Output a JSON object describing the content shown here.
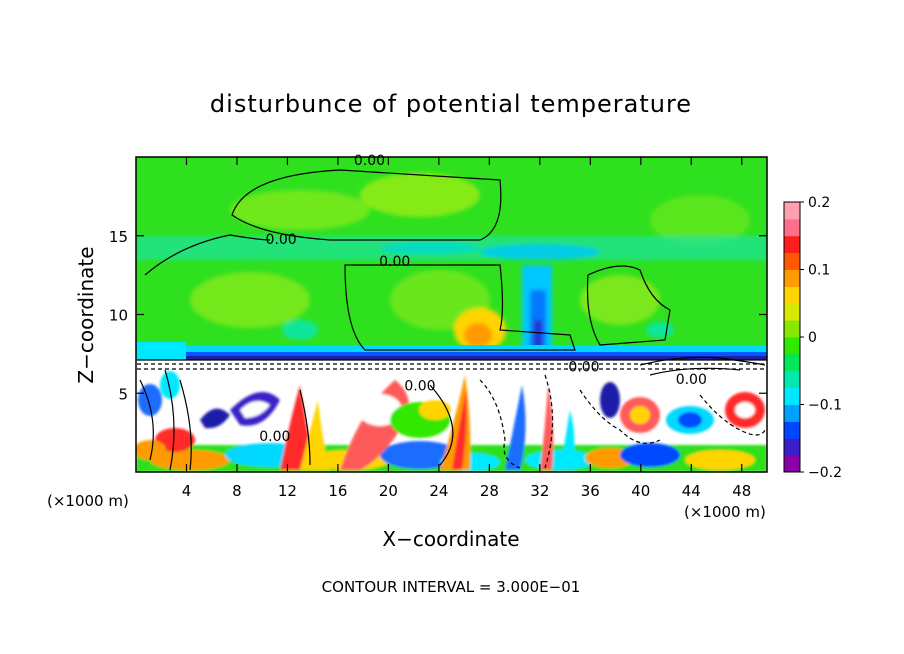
{
  "chart_data": {
    "type": "heatmap",
    "title": "disturbunce of potential temperature",
    "xlabel": "X−coordinate",
    "ylabel": "Z−coordinate",
    "x_unit": "(×1000 m)",
    "x_unit_right": "(×1000 m)",
    "xlim": [
      0,
      50
    ],
    "ylim": [
      0,
      20
    ],
    "x_ticks": [
      4,
      8,
      12,
      16,
      20,
      24,
      28,
      32,
      36,
      40,
      44,
      48
    ],
    "y_ticks": [
      5,
      10,
      15
    ],
    "colorbar": {
      "range": [
        -0.2,
        0.2
      ],
      "tick_values": [
        0.2,
        0.1,
        0,
        -0.1,
        -0.2
      ],
      "tick_labels": [
        "0.2",
        "0.1",
        "0",
        "−0.1",
        "−0.2"
      ],
      "colors": [
        "#8b00a8",
        "#3a20c8",
        "#0048ff",
        "#00a0ff",
        "#00e8ff",
        "#00e8b0",
        "#00e85a",
        "#30e800",
        "#8ae800",
        "#d8e800",
        "#ffd400",
        "#ff9a00",
        "#ff5a00",
        "#ff1e1e",
        "#ff6e8a",
        "#ffa0b0"
      ]
    },
    "contour_labels": [
      {
        "text": "0.00",
        "x": 18.5,
        "z": 19.8
      },
      {
        "text": "0.00",
        "x": 11.5,
        "z": 14.8
      },
      {
        "text": "0.00",
        "x": 20.5,
        "z": 13.4
      },
      {
        "text": "0.00",
        "x": 22.5,
        "z": 5.5
      },
      {
        "text": "0.00",
        "x": 35.5,
        "z": 6.7
      },
      {
        "text": "0.00",
        "x": 44,
        "z": 5.9
      },
      {
        "text": "0.00",
        "x": 11,
        "z": 2.3
      }
    ],
    "footer": "CONTOUR INTERVAL = 3.000E−01"
  }
}
